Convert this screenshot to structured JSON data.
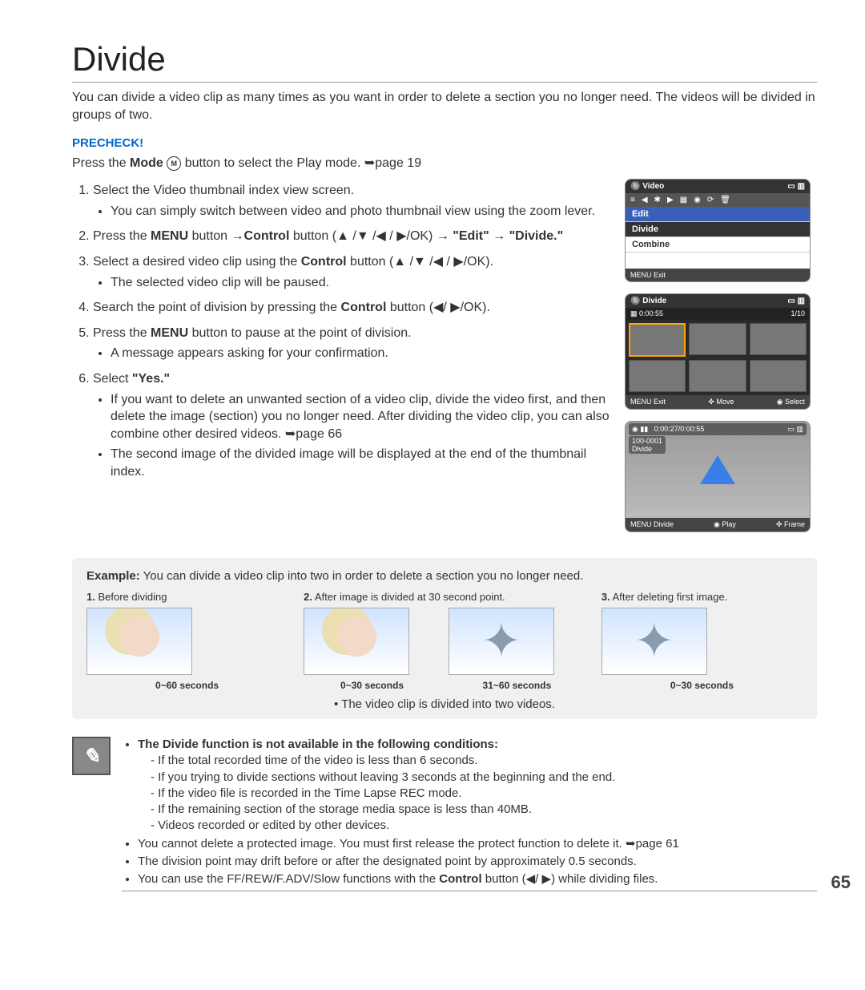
{
  "title": "Divide",
  "intro": "You can divide a video clip as many times as you want in order to delete a section you no longer need. The videos will be divided in groups of two.",
  "precheck_label": "PRECHECK!",
  "precheck_text_pre": "Press the ",
  "precheck_mode": "Mode",
  "precheck_modeicon": "M",
  "precheck_text_post": " button to select the Play mode. ➥page 19",
  "steps": {
    "s1": "Select the Video thumbnail index view screen.",
    "s1b": "You can simply switch between video and photo thumbnail view using the zoom lever.",
    "s2a": "Press the ",
    "s2_menu": "MENU",
    "s2b": " button →",
    "s2_control": "Control",
    "s2c": " button (▲ /▼ /◀ / ▶/OK) → ",
    "s2_edit": "\"Edit\" → \"Divide.\"",
    "s3a": "Select a desired video clip using the ",
    "s3b": " button (▲ /▼ /◀ / ▶/OK).",
    "s3bul": "The selected video clip will be paused.",
    "s4a": "Search the point of division by pressing the ",
    "s4b": " button (◀/ ▶/OK).",
    "s5a": "Press the ",
    "s5b": " button to pause at the point of division.",
    "s5bul": "A message appears asking for your confirmation.",
    "s6a": "Select ",
    "s6_yes": "\"Yes.\"",
    "s6b1": "If you want to delete an unwanted section of a video clip, divide the video first, and then delete the image (section) you no longer need. After dividing the video clip, you can also combine other desired videos. ➥page 66",
    "s6b2": "The second image of the divided image will be displayed at the end of the thumbnail index."
  },
  "screens": {
    "s1": {
      "title": "Video",
      "edit": "Edit",
      "divide": "Divide",
      "combine": "Combine",
      "exit": "Exit",
      "menu": "MENU"
    },
    "s2": {
      "title": "Divide",
      "time": "0:00:55",
      "count": "1/10",
      "exit": "Exit",
      "move": "Move",
      "select": "Select"
    },
    "s3": {
      "time": "0:00:27/0:00:55",
      "file": "100-0001",
      "label": "Divide",
      "bDivide": "Divide",
      "bPlay": "Play",
      "bFrame": "Frame",
      "menu": "MENU"
    }
  },
  "example": {
    "title_b": "Example:",
    "title": " You can divide a video clip into two in order to delete a section you no longer need.",
    "c1": "Before dividing",
    "c1n": "1.",
    "c2": "After image is divided at 30 second point.",
    "c2n": "2.",
    "c3": "After deleting first image.",
    "c3n": "3.",
    "cap1": "0~60 seconds",
    "cap2": "0~30 seconds",
    "cap3": "31~60 seconds",
    "cap4": "0~30 seconds",
    "note": "The video clip is divided into two videos."
  },
  "notes": {
    "h": "The Divide function is not available in the following conditions:",
    "d1": "If the total recorded time of the video is less than 6 seconds.",
    "d2": "If you trying to divide sections without leaving 3 seconds at the beginning and the end.",
    "d3": "If the video file is recorded in the Time Lapse REC mode.",
    "d4": "If the remaining section of the storage media space is less than 40MB.",
    "d5": "Videos recorded or edited by other devices.",
    "n2": "You cannot delete a protected image. You must first release the protect function to delete it. ➥page 61",
    "n3": "The division point may drift before or after the designated point by approximately 0.5 seconds.",
    "n4a": "You can use the FF/REW/F.ADV/Slow functions with the ",
    "n4c": "Control",
    "n4b": " button (◀/ ▶) while dividing files."
  },
  "pagenum": "65"
}
